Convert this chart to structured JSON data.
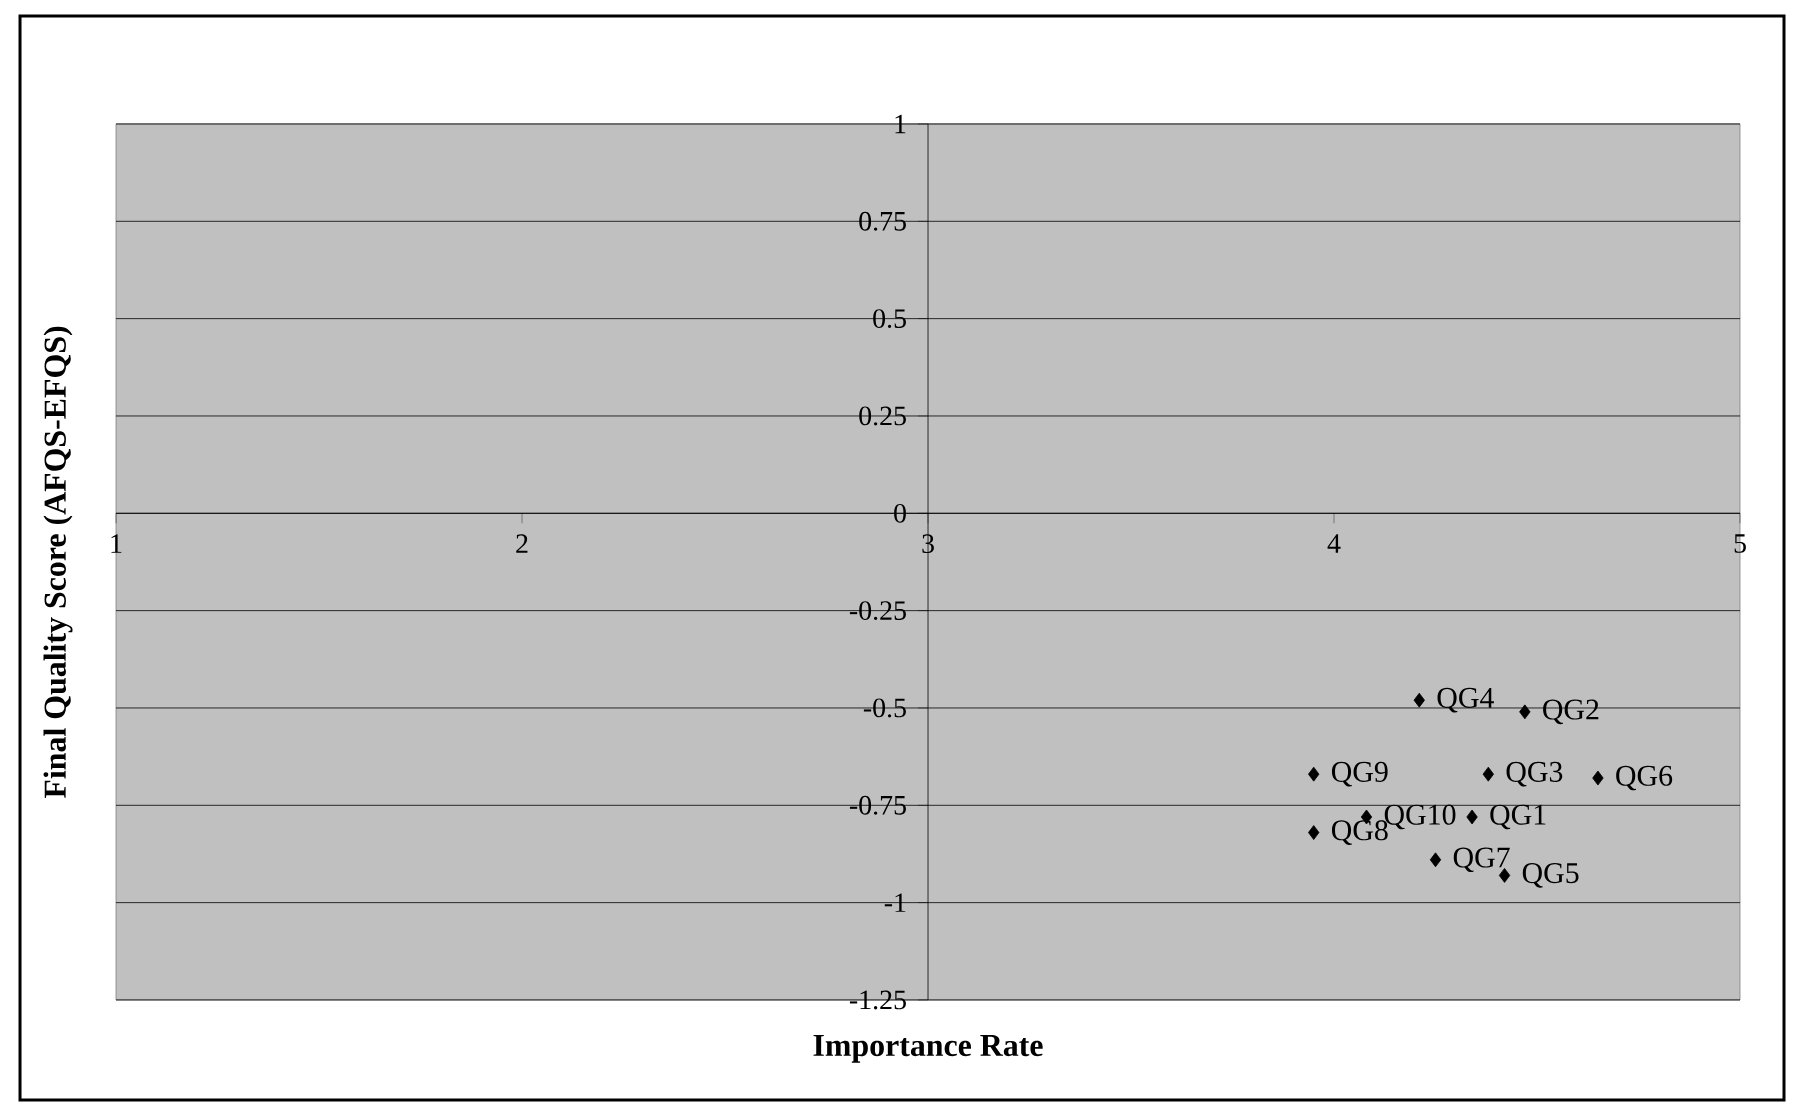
{
  "chart_data": {
    "type": "scatter",
    "xlabel": "Importance Rate",
    "ylabel": "Final Quality Score (AFQS-EFQS)",
    "x": [
      4.34,
      4.47,
      4.38,
      4.21,
      4.42,
      4.65,
      4.25,
      3.95,
      3.95,
      4.08
    ],
    "values": [
      -0.78,
      -0.51,
      -0.67,
      -0.48,
      -0.93,
      -0.68,
      -0.89,
      -0.82,
      -0.67,
      -0.78
    ],
    "color": "#000000",
    "marker": "diamond",
    "xlim": [
      1,
      5
    ],
    "ylim": [
      -1.25,
      1
    ],
    "xticks": [
      1,
      2,
      3,
      4,
      5
    ],
    "yticks": [
      -1.25,
      -1,
      -0.75,
      -0.5,
      -0.25,
      0,
      0.25,
      0.5,
      0.75,
      1
    ],
    "grid": "y",
    "annotations": [
      {
        "text": "QG1",
        "x": 4.34,
        "y": -0.78
      },
      {
        "text": "QG2",
        "x": 4.47,
        "y": -0.51
      },
      {
        "text": "QG3",
        "x": 4.38,
        "y": -0.67
      },
      {
        "text": "QG4",
        "x": 4.21,
        "y": -0.48
      },
      {
        "text": "QG5",
        "x": 4.42,
        "y": -0.93
      },
      {
        "text": "QG6",
        "x": 4.65,
        "y": -0.68
      },
      {
        "text": "QG7",
        "x": 4.25,
        "y": -0.89
      },
      {
        "text": "QG8",
        "x": 3.95,
        "y": -0.82
      },
      {
        "text": "QG9",
        "x": 3.95,
        "y": -0.67
      },
      {
        "text": "QG10",
        "x": 4.08,
        "y": -0.78
      }
    ]
  }
}
